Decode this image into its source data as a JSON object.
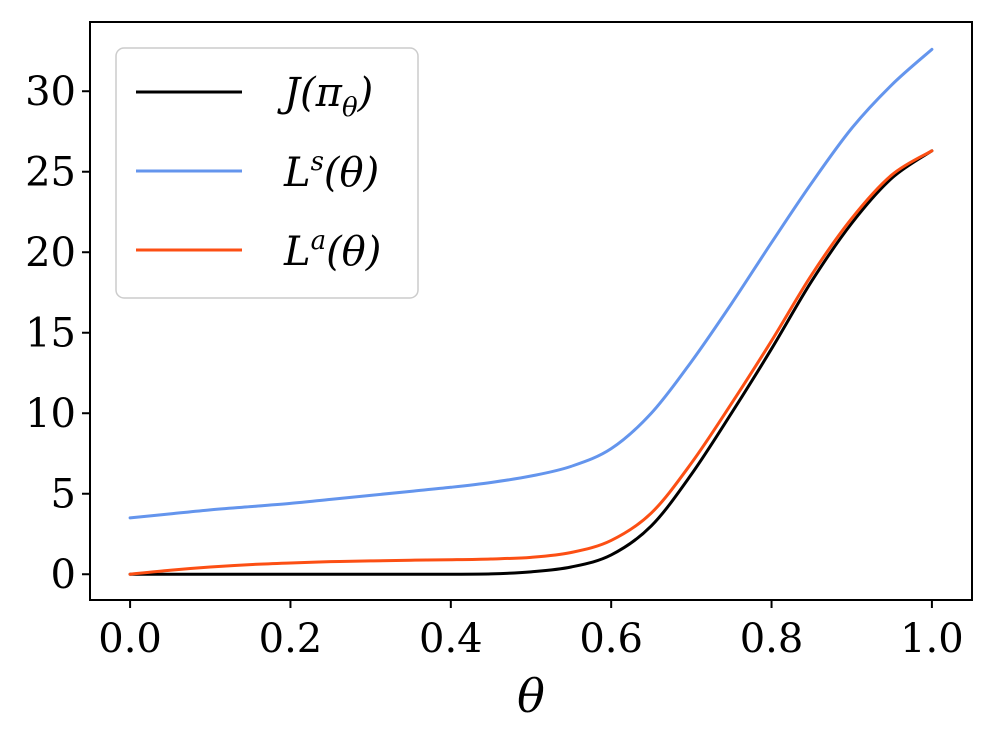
{
  "chart_data": {
    "type": "line",
    "title": "",
    "xlabel": "θ",
    "ylabel": "",
    "xlim": [
      -0.05,
      1.05
    ],
    "ylim": [
      -1.6,
      34.3
    ],
    "x_ticks": [
      0.0,
      0.2,
      0.4,
      0.6,
      0.8,
      1.0
    ],
    "x_tick_labels": [
      "0.0",
      "0.2",
      "0.4",
      "0.6",
      "0.8",
      "1.0"
    ],
    "y_ticks": [
      0,
      5,
      10,
      15,
      20,
      25,
      30
    ],
    "y_tick_labels": [
      "0",
      "5",
      "10",
      "15",
      "20",
      "25",
      "30"
    ],
    "grid": false,
    "legend_position": "top-left",
    "x": [
      0.0,
      0.05,
      0.1,
      0.15,
      0.2,
      0.25,
      0.3,
      0.35,
      0.4,
      0.45,
      0.5,
      0.55,
      0.6,
      0.65,
      0.7,
      0.75,
      0.8,
      0.85,
      0.9,
      0.95,
      1.0
    ],
    "series": [
      {
        "name": "J(π_θ)",
        "color": "#000000",
        "values": [
          0.0,
          0.0,
          0.0,
          0.0,
          0.0,
          0.0,
          0.0,
          0.0,
          0.0,
          0.02,
          0.15,
          0.45,
          1.2,
          3.0,
          6.2,
          10.0,
          14.0,
          18.2,
          21.8,
          24.6,
          26.3
        ]
      },
      {
        "name": "L^s(θ)",
        "color": "#6495ed",
        "values": [
          3.5,
          3.75,
          4.0,
          4.2,
          4.4,
          4.65,
          4.9,
          5.15,
          5.4,
          5.7,
          6.1,
          6.7,
          7.8,
          10.0,
          13.2,
          16.8,
          20.6,
          24.3,
          27.7,
          30.4,
          32.6
        ]
      },
      {
        "name": "L^a(θ)",
        "color": "#fc4f14",
        "values": [
          0.0,
          0.25,
          0.45,
          0.6,
          0.7,
          0.78,
          0.83,
          0.87,
          0.9,
          0.95,
          1.05,
          1.35,
          2.1,
          3.8,
          6.9,
          10.6,
          14.5,
          18.6,
          22.1,
          24.8,
          26.3
        ]
      }
    ]
  },
  "legend": {
    "j_main": "J(π",
    "j_sub": "θ",
    "j_close": ")",
    "ls_main": "L",
    "ls_sup": "s",
    "ls_rest": "(θ)",
    "la_main": "L",
    "la_sup": "a",
    "la_rest": "(θ)"
  }
}
